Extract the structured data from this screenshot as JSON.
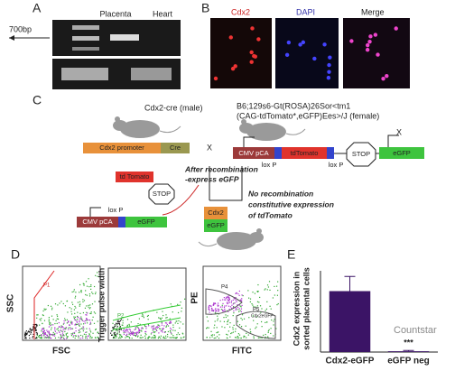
{
  "panels": {
    "A": {
      "label": "A",
      "marker": "700bp",
      "lanes": [
        "Placenta",
        "Heart"
      ]
    },
    "B": {
      "label": "B",
      "channels": [
        "Cdx2",
        "DAPI",
        "Merge"
      ]
    },
    "C": {
      "label": "C",
      "male": "Cdx2-cre (male)",
      "female": [
        "B6;129s6-Gt(ROSA)26Sor<tm1",
        "(CAG-tdTomato*,eGFP)Ees>/J (female)"
      ],
      "cross": [
        "X",
        "X"
      ],
      "male_construct": [
        "Cdx2 promoter",
        "Cre"
      ],
      "female_construct": [
        "CMV pCA",
        "lox P",
        "tdTomato",
        "lox P",
        "STOP",
        "eGFP"
      ],
      "recombination": [
        "After recombination",
        "-express eGFP"
      ],
      "excised": [
        "td Tomato",
        "STOP"
      ],
      "no_recombination": [
        "No recombination",
        "constitutive expression",
        "of tdTomato"
      ],
      "recombined_construct": [
        "CMV pCA",
        "lox P",
        "eGFP"
      ],
      "offspring": [
        "Cdx2",
        "eGFP"
      ]
    },
    "D": {
      "label": "D",
      "plots": [
        {
          "y_label": "SSC",
          "x_label": "FSC",
          "gate": "P1"
        },
        {
          "y_label": "Trigger pulse width",
          "gate": "P2"
        },
        {
          "y_label": "PE",
          "x_label": "FITC",
          "gates": [
            "P4",
            "P5",
            "Cdx2eGFP"
          ]
        }
      ]
    }
  },
  "chart_data": {
    "type": "bar",
    "panel_label": "E",
    "y_label": [
      "Cdx2 expression in",
      "sorted placental cells"
    ],
    "categories": [
      "Cdx2-eGFP",
      "eGFP neg"
    ],
    "values": [
      75,
      1
    ],
    "errors": [
      18,
      1
    ],
    "color": "#3b1466",
    "ylim": [
      0,
      100
    ],
    "annotation": "***"
  },
  "watermark": "Countstar"
}
